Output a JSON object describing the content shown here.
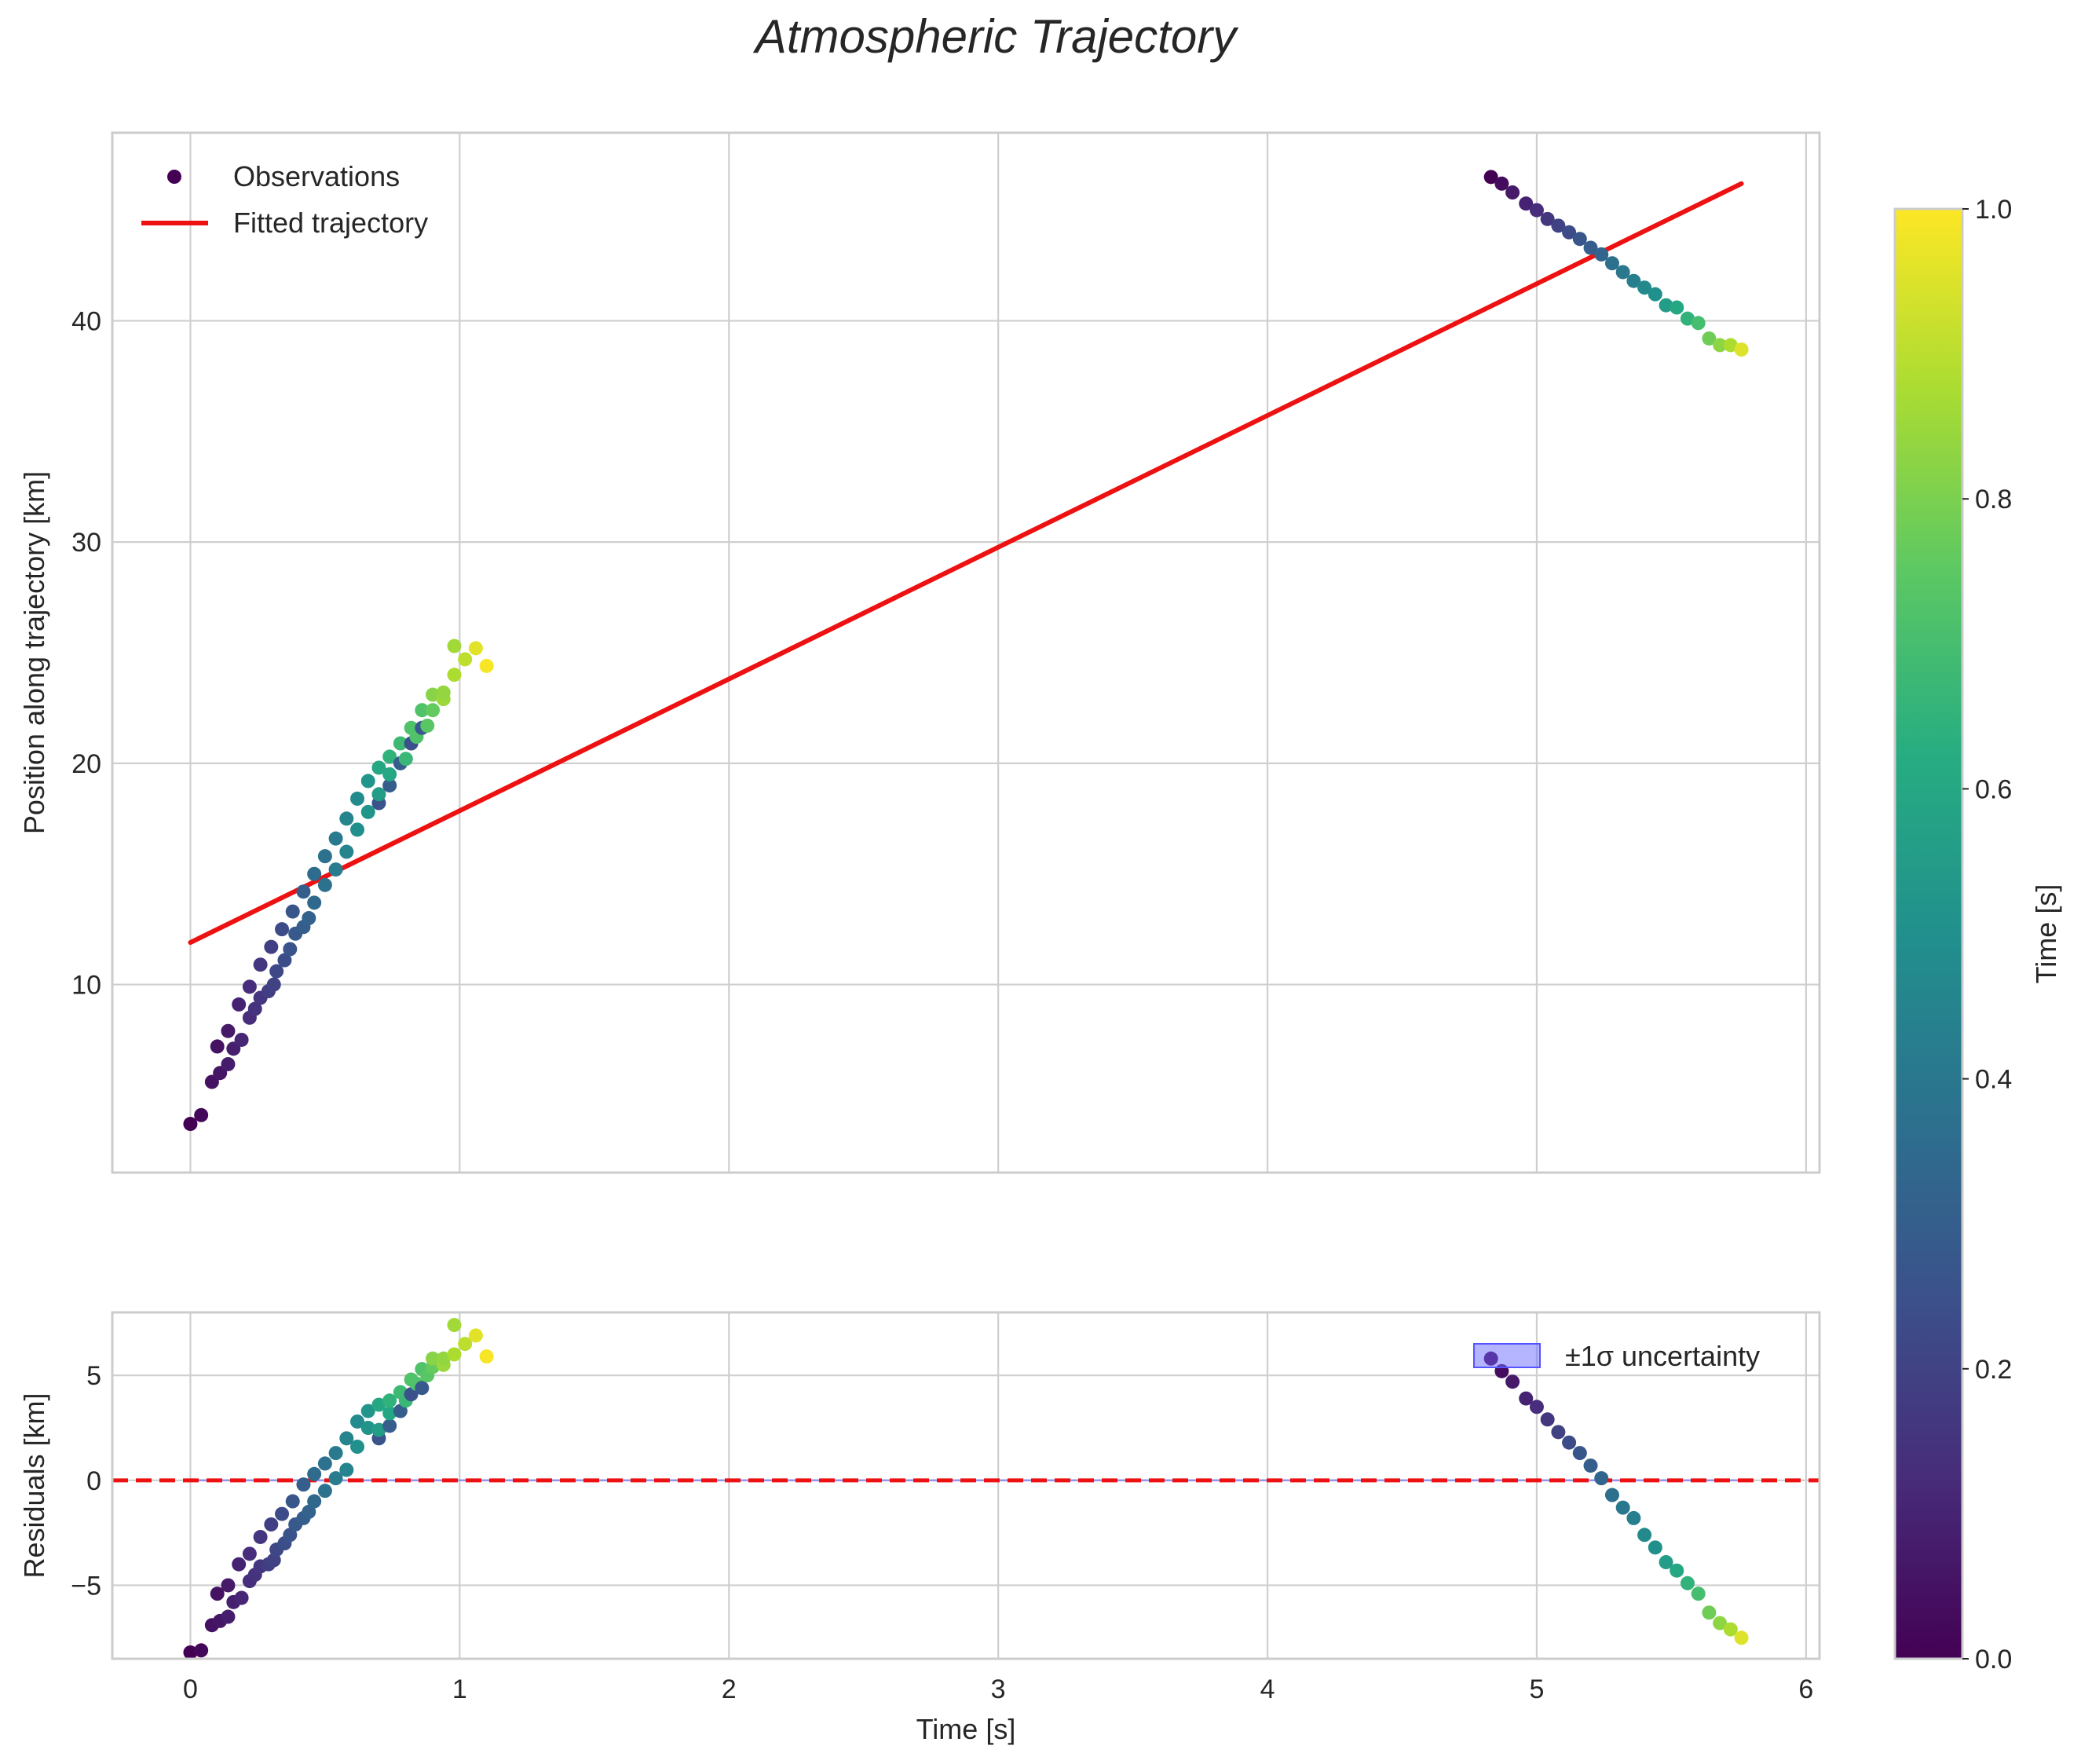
{
  "title": "Atmospheric Trajectory",
  "chart_data": [
    {
      "panel": "trajectory",
      "type": "scatter",
      "ylabel": "Position along trajectory [km]",
      "xlabel": "",
      "xlim": [
        -0.29,
        6.05
      ],
      "ylim": [
        1.5,
        48.5
      ],
      "xticks": [
        0,
        1,
        2,
        3,
        4,
        5,
        6
      ],
      "yticks": [
        10,
        20,
        30,
        40
      ],
      "grid": true,
      "legend": {
        "location": "upper-left",
        "entries": [
          "Observations",
          "Fitted trajectory"
        ]
      },
      "series": [
        {
          "name": "Observations",
          "kind": "scatter",
          "colormap": "viridis",
          "color_variable": "Time [s] (normalized)",
          "points": [
            [
              0.0,
              3.7,
              0.0
            ],
            [
              0.04,
              4.1,
              0.02
            ],
            [
              0.08,
              5.6,
              0.05
            ],
            [
              0.1,
              7.2,
              0.05
            ],
            [
              0.11,
              6.0,
              0.06
            ],
            [
              0.14,
              6.4,
              0.08
            ],
            [
              0.14,
              7.9,
              0.07
            ],
            [
              0.16,
              7.1,
              0.09
            ],
            [
              0.18,
              9.1,
              0.1
            ],
            [
              0.19,
              7.5,
              0.11
            ],
            [
              0.22,
              8.5,
              0.13
            ],
            [
              0.22,
              9.9,
              0.13
            ],
            [
              0.24,
              8.9,
              0.15
            ],
            [
              0.26,
              9.4,
              0.16
            ],
            [
              0.26,
              10.9,
              0.16
            ],
            [
              0.29,
              9.7,
              0.19
            ],
            [
              0.3,
              11.7,
              0.19
            ],
            [
              0.31,
              10.0,
              0.2
            ],
            [
              0.32,
              10.6,
              0.22
            ],
            [
              0.34,
              12.5,
              0.23
            ],
            [
              0.35,
              11.1,
              0.24
            ],
            [
              0.37,
              11.6,
              0.26
            ],
            [
              0.38,
              13.3,
              0.27
            ],
            [
              0.39,
              12.3,
              0.28
            ],
            [
              0.42,
              12.6,
              0.3
            ],
            [
              0.42,
              14.2,
              0.3
            ],
            [
              0.44,
              13.0,
              0.32
            ],
            [
              0.46,
              13.7,
              0.34
            ],
            [
              0.46,
              15.0,
              0.35
            ],
            [
              0.5,
              14.5,
              0.38
            ],
            [
              0.5,
              15.8,
              0.38
            ],
            [
              0.54,
              15.2,
              0.42
            ],
            [
              0.54,
              16.6,
              0.41
            ],
            [
              0.58,
              16.0,
              0.45
            ],
            [
              0.58,
              17.5,
              0.45
            ],
            [
              0.62,
              17.0,
              0.5
            ],
            [
              0.62,
              18.4,
              0.48
            ],
            [
              0.66,
              17.8,
              0.52
            ],
            [
              0.66,
              19.2,
              0.52
            ],
            [
              0.7,
              18.2,
              0.26
            ],
            [
              0.7,
              18.6,
              0.55
            ],
            [
              0.7,
              19.8,
              0.6
            ],
            [
              0.74,
              19.0,
              0.3
            ],
            [
              0.74,
              19.5,
              0.6
            ],
            [
              0.74,
              20.3,
              0.65
            ],
            [
              0.78,
              20.0,
              0.3
            ],
            [
              0.78,
              20.9,
              0.68
            ],
            [
              0.8,
              20.2,
              0.67
            ],
            [
              0.82,
              20.9,
              0.25
            ],
            [
              0.82,
              21.6,
              0.72
            ],
            [
              0.84,
              21.2,
              0.72
            ],
            [
              0.86,
              21.6,
              0.28
            ],
            [
              0.86,
              22.4,
              0.72
            ],
            [
              0.88,
              21.7,
              0.74
            ],
            [
              0.9,
              22.4,
              0.76
            ],
            [
              0.9,
              23.1,
              0.82
            ],
            [
              0.94,
              22.9,
              0.85
            ],
            [
              0.94,
              23.2,
              0.84
            ],
            [
              0.98,
              24.0,
              0.88
            ],
            [
              0.98,
              25.3,
              0.86
            ],
            [
              1.02,
              24.7,
              0.9
            ],
            [
              1.06,
              25.2,
              0.96
            ],
            [
              1.1,
              24.4,
              0.99
            ],
            [
              4.83,
              46.5,
              0.0
            ],
            [
              4.87,
              46.2,
              0.03
            ],
            [
              4.91,
              45.8,
              0.07
            ],
            [
              4.96,
              45.3,
              0.1
            ],
            [
              5.0,
              45.0,
              0.13
            ],
            [
              5.04,
              44.6,
              0.16
            ],
            [
              5.08,
              44.3,
              0.2
            ],
            [
              5.12,
              44.0,
              0.23
            ],
            [
              5.16,
              43.7,
              0.27
            ],
            [
              5.2,
              43.3,
              0.3
            ],
            [
              5.24,
              43.0,
              0.33
            ],
            [
              5.28,
              42.6,
              0.37
            ],
            [
              5.32,
              42.2,
              0.4
            ],
            [
              5.36,
              41.8,
              0.43
            ],
            [
              5.4,
              41.5,
              0.47
            ],
            [
              5.44,
              41.2,
              0.5
            ],
            [
              5.48,
              40.7,
              0.55
            ],
            [
              5.52,
              40.6,
              0.6
            ],
            [
              5.56,
              40.1,
              0.65
            ],
            [
              5.6,
              39.9,
              0.7
            ],
            [
              5.64,
              39.2,
              0.78
            ],
            [
              5.68,
              38.9,
              0.83
            ],
            [
              5.72,
              38.9,
              0.88
            ],
            [
              5.76,
              38.7,
              0.95
            ]
          ]
        },
        {
          "name": "Fitted trajectory",
          "kind": "line",
          "color": "#ee1111",
          "x": [
            0.0,
            5.76
          ],
          "y": [
            11.9,
            46.2
          ]
        }
      ]
    },
    {
      "panel": "residuals",
      "type": "scatter",
      "ylabel": "Residuals [km]",
      "xlabel": "Time [s]",
      "xlim": [
        -0.29,
        6.05
      ],
      "ylim": [
        -8.5,
        8.0
      ],
      "xticks": [
        0,
        1,
        2,
        3,
        4,
        5,
        6
      ],
      "yticks": [
        -5,
        0,
        5
      ],
      "yticklabels": [
        "−5",
        "0",
        "5"
      ],
      "grid": true,
      "legend": {
        "location": "upper-right",
        "entries": [
          "±1σ uncertainty"
        ]
      },
      "series": [
        {
          "name": "Residuals",
          "kind": "scatter",
          "colormap": "viridis",
          "points": [
            [
              0.0,
              -8.2,
              0.0
            ],
            [
              0.04,
              -8.1,
              0.02
            ],
            [
              0.08,
              -6.9,
              0.05
            ],
            [
              0.1,
              -5.4,
              0.05
            ],
            [
              0.11,
              -6.7,
              0.06
            ],
            [
              0.14,
              -6.5,
              0.08
            ],
            [
              0.14,
              -5.0,
              0.07
            ],
            [
              0.16,
              -5.8,
              0.09
            ],
            [
              0.18,
              -4.0,
              0.1
            ],
            [
              0.19,
              -5.6,
              0.11
            ],
            [
              0.22,
              -4.8,
              0.13
            ],
            [
              0.22,
              -3.5,
              0.13
            ],
            [
              0.24,
              -4.5,
              0.15
            ],
            [
              0.26,
              -4.1,
              0.16
            ],
            [
              0.26,
              -2.7,
              0.16
            ],
            [
              0.29,
              -4.0,
              0.19
            ],
            [
              0.3,
              -2.1,
              0.19
            ],
            [
              0.31,
              -3.8,
              0.2
            ],
            [
              0.32,
              -3.3,
              0.22
            ],
            [
              0.34,
              -1.6,
              0.23
            ],
            [
              0.35,
              -3.0,
              0.24
            ],
            [
              0.37,
              -2.6,
              0.26
            ],
            [
              0.38,
              -1.0,
              0.27
            ],
            [
              0.39,
              -2.1,
              0.28
            ],
            [
              0.42,
              -1.8,
              0.3
            ],
            [
              0.42,
              -0.2,
              0.3
            ],
            [
              0.44,
              -1.5,
              0.32
            ],
            [
              0.46,
              -1.0,
              0.34
            ],
            [
              0.46,
              0.3,
              0.35
            ],
            [
              0.5,
              -0.5,
              0.38
            ],
            [
              0.5,
              0.8,
              0.38
            ],
            [
              0.54,
              0.1,
              0.42
            ],
            [
              0.54,
              1.3,
              0.41
            ],
            [
              0.58,
              0.5,
              0.45
            ],
            [
              0.58,
              2.0,
              0.45
            ],
            [
              0.62,
              1.6,
              0.5
            ],
            [
              0.62,
              2.8,
              0.48
            ],
            [
              0.66,
              2.5,
              0.52
            ],
            [
              0.66,
              3.3,
              0.52
            ],
            [
              0.7,
              2.0,
              0.26
            ],
            [
              0.7,
              2.4,
              0.55
            ],
            [
              0.7,
              3.6,
              0.6
            ],
            [
              0.74,
              2.6,
              0.3
            ],
            [
              0.74,
              3.2,
              0.6
            ],
            [
              0.74,
              3.8,
              0.65
            ],
            [
              0.78,
              3.3,
              0.3
            ],
            [
              0.78,
              4.2,
              0.68
            ],
            [
              0.8,
              3.8,
              0.67
            ],
            [
              0.82,
              4.1,
              0.25
            ],
            [
              0.82,
              4.8,
              0.72
            ],
            [
              0.84,
              4.6,
              0.72
            ],
            [
              0.86,
              4.4,
              0.28
            ],
            [
              0.86,
              5.3,
              0.72
            ],
            [
              0.88,
              5.0,
              0.74
            ],
            [
              0.9,
              5.4,
              0.76
            ],
            [
              0.9,
              5.8,
              0.82
            ],
            [
              0.94,
              5.5,
              0.85
            ],
            [
              0.94,
              5.8,
              0.84
            ],
            [
              0.98,
              6.0,
              0.88
            ],
            [
              0.98,
              7.4,
              0.86
            ],
            [
              1.02,
              6.5,
              0.9
            ],
            [
              1.06,
              6.9,
              0.96
            ],
            [
              1.1,
              5.9,
              0.99
            ],
            [
              4.83,
              5.8,
              0.0
            ],
            [
              4.87,
              5.2,
              0.03
            ],
            [
              4.91,
              4.7,
              0.07
            ],
            [
              4.96,
              3.9,
              0.1
            ],
            [
              5.0,
              3.5,
              0.13
            ],
            [
              5.04,
              2.9,
              0.16
            ],
            [
              5.08,
              2.3,
              0.2
            ],
            [
              5.12,
              1.8,
              0.23
            ],
            [
              5.16,
              1.3,
              0.27
            ],
            [
              5.2,
              0.7,
              0.3
            ],
            [
              5.24,
              0.1,
              0.33
            ],
            [
              5.28,
              -0.7,
              0.37
            ],
            [
              5.32,
              -1.3,
              0.4
            ],
            [
              5.36,
              -1.8,
              0.43
            ],
            [
              5.4,
              -2.6,
              0.47
            ],
            [
              5.44,
              -3.2,
              0.5
            ],
            [
              5.48,
              -3.9,
              0.55
            ],
            [
              5.52,
              -4.3,
              0.6
            ],
            [
              5.56,
              -4.9,
              0.65
            ],
            [
              5.6,
              -5.4,
              0.7
            ],
            [
              5.64,
              -6.3,
              0.78
            ],
            [
              5.68,
              -6.8,
              0.83
            ],
            [
              5.72,
              -7.1,
              0.88
            ],
            [
              5.76,
              -7.5,
              0.95
            ]
          ]
        },
        {
          "name": "±1σ uncertainty",
          "kind": "band",
          "color": "#6b6bff",
          "x": [
            0.0,
            5.76
          ],
          "lower": -0.05,
          "upper": 0.05
        },
        {
          "name": "zero",
          "kind": "hline",
          "color": "#ee1111",
          "y": 0
        }
      ]
    },
    {
      "panel": "colorbar",
      "type": "heatmap",
      "label": "Time [s]",
      "colormap": "viridis",
      "range": [
        0.0,
        1.0
      ],
      "ticks": [
        0.0,
        0.2,
        0.4,
        0.6,
        0.8,
        1.0
      ],
      "ticklabels": [
        "0.0",
        "0.2",
        "0.4",
        "0.6",
        "0.8",
        "1.0"
      ]
    }
  ]
}
